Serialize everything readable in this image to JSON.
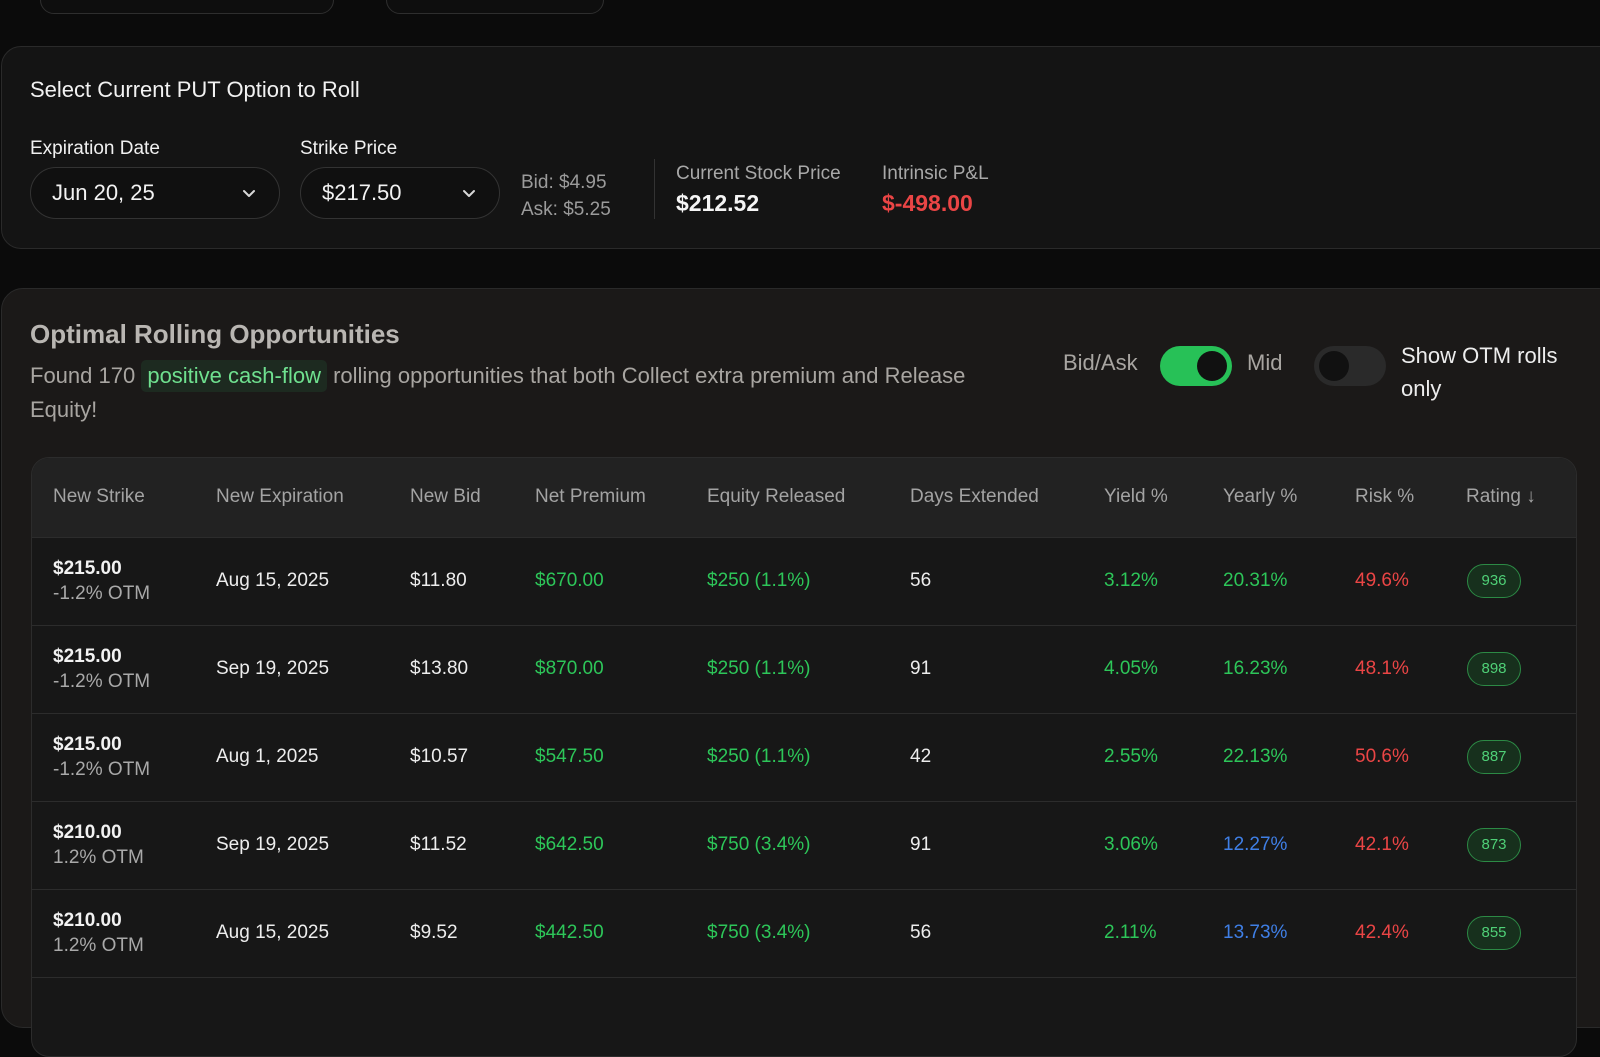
{
  "select_section": {
    "title": "Select Current PUT Option to Roll",
    "expiration_label": "Expiration Date",
    "expiration_value": "Jun 20, 25",
    "strike_label": "Strike Price",
    "strike_value": "$217.50",
    "bid": "Bid: $4.95",
    "ask": "Ask: $5.25",
    "stock_price_label": "Current Stock Price",
    "stock_price_value": "$212.52",
    "pnl_label": "Intrinsic P&L",
    "pnl_value": "$-498.00"
  },
  "opportunities": {
    "title": "Optimal Rolling Opportunities",
    "desc_prefix": "Found 170",
    "desc_highlight": "positive cash-flow",
    "desc_suffix": "rolling opportunities that both Collect extra premium and Release Equity!",
    "toggle_left_label": "Bid/Ask",
    "toggle_right_label": "Mid",
    "otm_label": "Show OTM rolls only"
  },
  "table": {
    "columns": [
      "New Strike",
      "New Expiration",
      "New Bid",
      "Net Premium",
      "Equity Released",
      "Days Extended",
      "Yield %",
      "Yearly %",
      "Risk %",
      "Rating ↓"
    ],
    "rows": [
      {
        "strike": "$215.00",
        "otm": "-1.2% OTM",
        "expiration": "Aug 15, 2025",
        "bid": "$11.80",
        "premium": "$670.00",
        "equity": "$250 (1.1%)",
        "days": "56",
        "yield": "3.12%",
        "yearly": "20.31%",
        "risk": "49.6%",
        "rating": "936"
      },
      {
        "strike": "$215.00",
        "otm": "-1.2% OTM",
        "expiration": "Sep 19, 2025",
        "bid": "$13.80",
        "premium": "$870.00",
        "equity": "$250 (1.1%)",
        "days": "91",
        "yield": "4.05%",
        "yearly": "16.23%",
        "risk": "48.1%",
        "rating": "898"
      },
      {
        "strike": "$215.00",
        "otm": "-1.2% OTM",
        "expiration": "Aug 1, 2025",
        "bid": "$10.57",
        "premium": "$547.50",
        "equity": "$250 (1.1%)",
        "days": "42",
        "yield": "2.55%",
        "yearly": "22.13%",
        "risk": "50.6%",
        "rating": "887"
      },
      {
        "strike": "$210.00",
        "otm": "1.2% OTM",
        "expiration": "Sep 19, 2025",
        "bid": "$11.52",
        "premium": "$642.50",
        "equity": "$750 (3.4%)",
        "days": "91",
        "yield": "3.06%",
        "yearly": "12.27%",
        "risk": "42.1%",
        "rating": "873"
      },
      {
        "strike": "$210.00",
        "otm": "1.2% OTM",
        "expiration": "Aug 15, 2025",
        "bid": "$9.52",
        "premium": "$442.50",
        "equity": "$750 (3.4%)",
        "days": "56",
        "yield": "2.11%",
        "yearly": "13.73%",
        "risk": "42.4%",
        "rating": "855"
      }
    ]
  },
  "colors": {
    "accent_green": "#2dc659",
    "blue": "#3f7fe6",
    "red": "#ea4545"
  },
  "icons": {
    "dropdown": "chevron-down-icon"
  }
}
